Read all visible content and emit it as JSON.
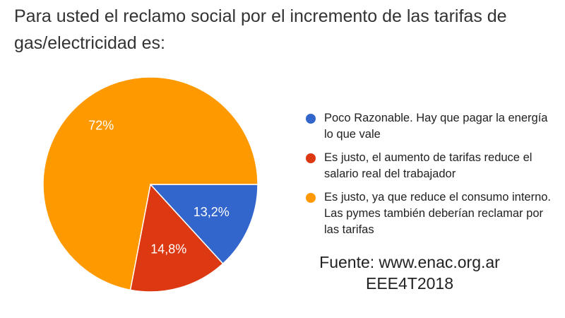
{
  "title": "Para usted el reclamo social por el incremento de las tarifas de gas/electricidad es:",
  "chart_data": {
    "type": "pie",
    "slices": [
      {
        "label": "Poco Razonable. Hay que pagar la energía lo que vale",
        "value": 13.2,
        "display": "13,2%",
        "color": "#3366cc"
      },
      {
        "label": "Es justo, el aumento de tarifas reduce el salario real del trabajador",
        "value": 14.8,
        "display": "14,8%",
        "color": "#dc3912"
      },
      {
        "label": "Es justo, ya que reduce el consumo interno. Las pymes también deberían reclamar por las tarifas",
        "value": 72,
        "display": "72%",
        "color": "#ff9900"
      }
    ],
    "legend_position": "right"
  },
  "source": {
    "line1": "Fuente: www.enac.org.ar",
    "line2": "EEE4T2018"
  }
}
